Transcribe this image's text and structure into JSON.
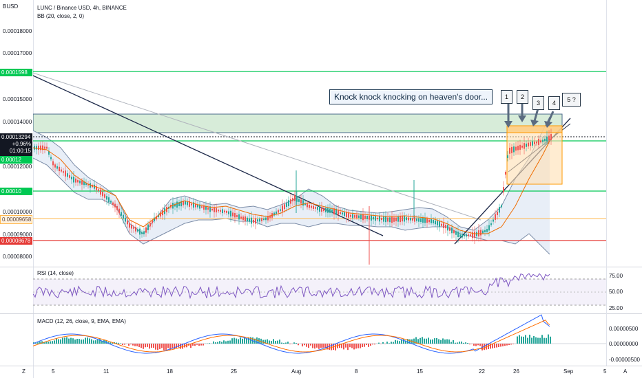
{
  "currency_label": "BUSD",
  "symbol_legend": "LUNC / Binance USD, 4h, BINANCE",
  "bb_legend": "BB (20, close, 2, 0)",
  "rsi_legend": "RSI (14, close)",
  "macd_legend": "MACD (12, 26, close, 9, EMA, EMA)",
  "annotation_text": "Knock knock knocking on heaven's door...",
  "price_axis": [
    "0.00018000",
    "0.00017000",
    "0.00015000",
    "0.00014000",
    "0.00012000",
    "0.00010000",
    "0.00009000",
    "0.00008000"
  ],
  "price_tags": {
    "level_top": "0.0001598",
    "current_price": "0.00013294",
    "change_pct": "+0.96%",
    "countdown": "01:00:15",
    "level_mid": "0.00012",
    "level_low": "0.00010",
    "orange_level": "0.00009658",
    "red_level": "0.00008678"
  },
  "rsi_axis": [
    "75.00",
    "50.00",
    "25.00"
  ],
  "macd_axis": [
    "0.00000500",
    "0.00000000",
    "-0.00000500"
  ],
  "date_axis": [
    "5",
    "11",
    "18",
    "25",
    "Aug",
    "8",
    "15",
    "22",
    "26",
    "Sep",
    "5"
  ],
  "bottom_left_label": "Z",
  "bottom_right_label": "A",
  "callouts": [
    "1",
    "2",
    "3",
    "4",
    "5 ?"
  ],
  "colors": {
    "green_line": "#00c853",
    "red_line": "#e53935",
    "orange_line": "#ffb74d",
    "bb_band": "#7b8ca7",
    "bb_fill": "#e3ebf5",
    "candle_up": "#26a69a",
    "candle_down": "#ef5350",
    "resistance_box": "#c8e6c9",
    "dark_trend": "#1e2a4a"
  }
}
